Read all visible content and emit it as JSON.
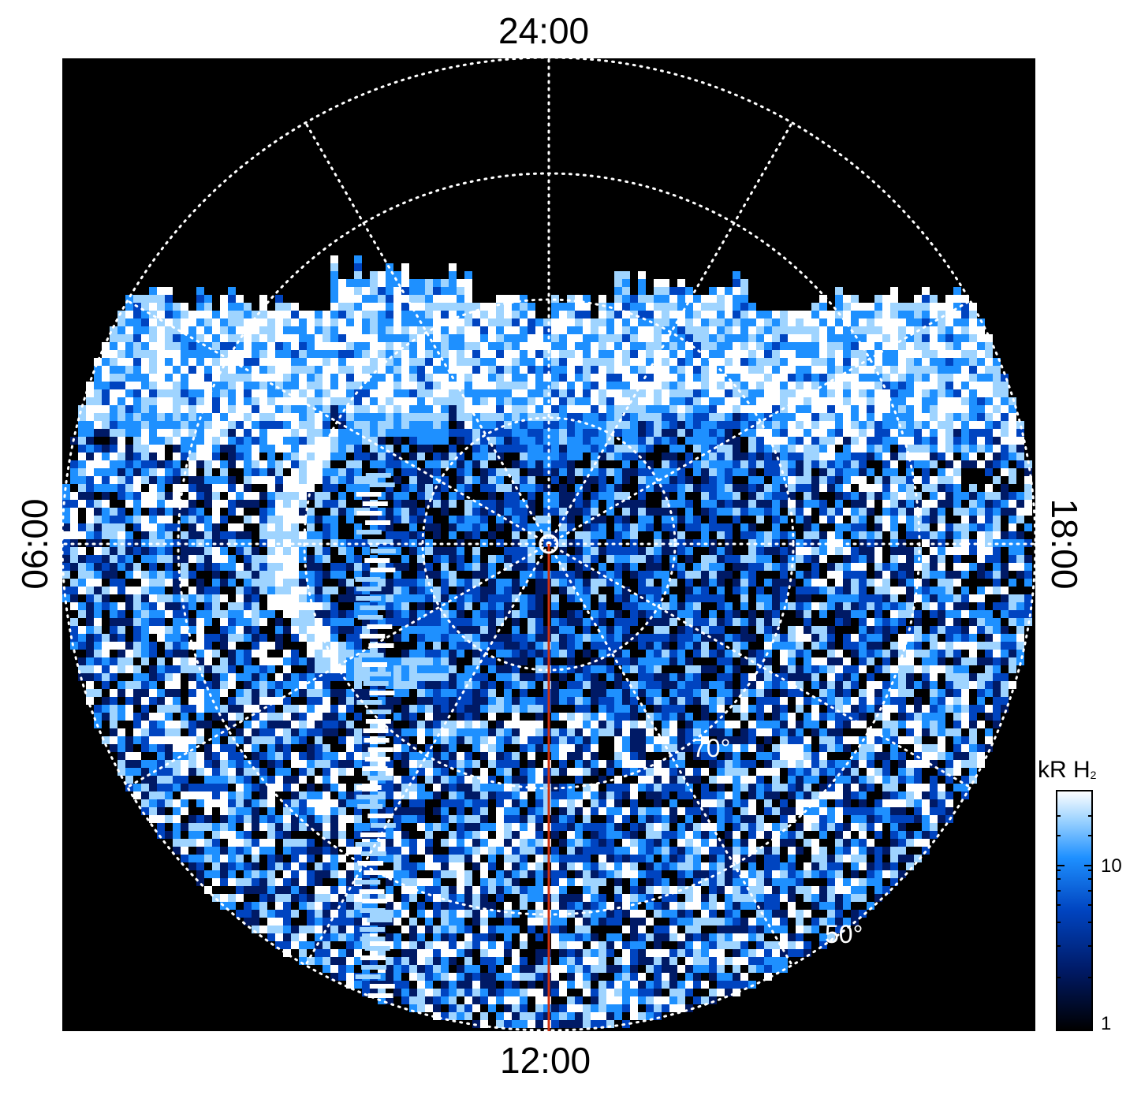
{
  "figure": {
    "local_time_labels": {
      "top": "24:00",
      "bottom": "12:00",
      "left": "06:00",
      "right": "18:00"
    },
    "latitude_labels": {
      "inner": "70°",
      "outer": "50°"
    },
    "colorbar": {
      "title_main": "kR H",
      "title_sub": "2",
      "tick_10": "10",
      "tick_1": "1",
      "colors": [
        "#000000",
        "#001a66",
        "#0044c0",
        "#1e90ff",
        "#9fd4ff",
        "#ffffff"
      ]
    },
    "meridian_line_color": "#d03010",
    "background_color": "#000000",
    "grid_color": "#ffffff"
  }
}
